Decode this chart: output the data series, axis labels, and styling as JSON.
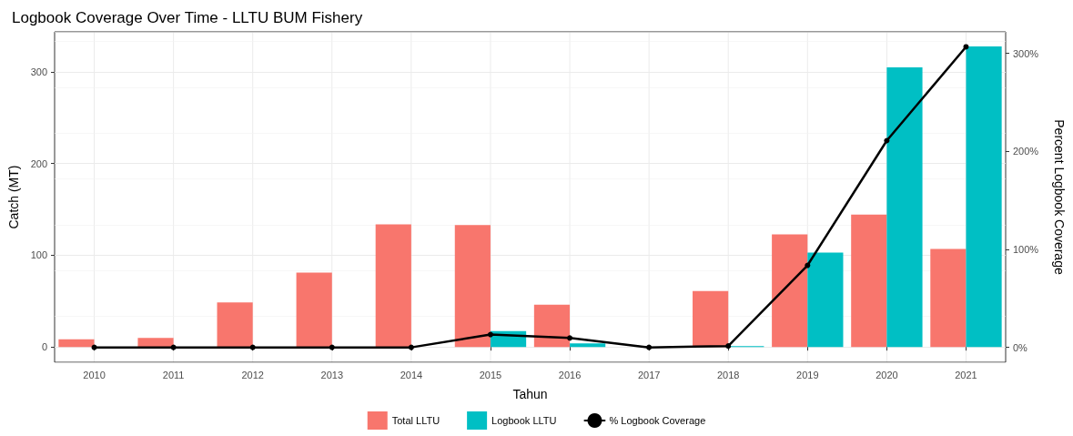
{
  "chart_data": {
    "type": "bar",
    "title": "Logbook Coverage Over Time - LLTU BUM Fishery",
    "xlabel": "Tahun",
    "ylabel": "Catch (MT)",
    "y2label": "Percent Logbook Coverage",
    "categories": [
      "2010",
      "2011",
      "2012",
      "2013",
      "2014",
      "2015",
      "2016",
      "2017",
      "2018",
      "2019",
      "2020",
      "2021"
    ],
    "series": [
      {
        "name": "Total LLTU",
        "color": "#f8766d",
        "values": [
          8.3,
          9.8,
          48.5,
          81,
          133.7,
          133,
          46,
          0,
          61,
          122.7,
          144.3,
          106.8
        ]
      },
      {
        "name": "Logbook LLTU",
        "color": "#00bfc4",
        "values": [
          0,
          0,
          0,
          0,
          0,
          17.4,
          4,
          0,
          0.8,
          103,
          305,
          327.7
        ]
      },
      {
        "name": "% Logbook Coverage",
        "type": "line",
        "axis": "y2",
        "color": "#000000",
        "marker": "circle",
        "line_style": "solid",
        "values": [
          0,
          0,
          0,
          0,
          0,
          13.1,
          9.6,
          0,
          1.4,
          83.7,
          211,
          306.7
        ]
      }
    ],
    "ylim": [
      -16.7,
      343.6
    ],
    "yticks": [
      0,
      100,
      200,
      300
    ],
    "y2lim": [
      -15.2,
      322
    ],
    "y2ticks": [
      {
        "value": 0,
        "label": "0%"
      },
      {
        "value": 100,
        "label": "100%"
      },
      {
        "value": 200,
        "label": "200%"
      },
      {
        "value": 300,
        "label": "300%"
      }
    ],
    "grid": true,
    "legend": "bottom"
  }
}
